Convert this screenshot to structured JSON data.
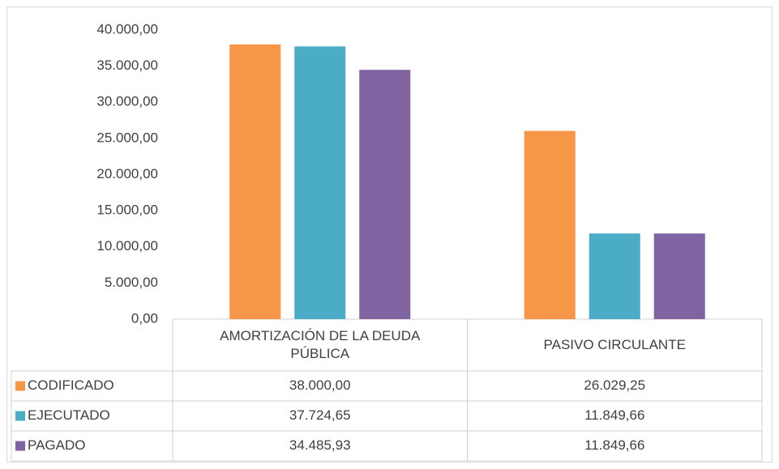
{
  "chart_data": {
    "type": "bar",
    "categories": [
      "AMORTIZACIÓN DE LA DEUDA PÚBLICA",
      "PASIVO CIRCULANTE"
    ],
    "series": [
      {
        "name": "CODIFICADO",
        "color": "#f79646",
        "values": [
          38000,
          26029.25
        ],
        "value_labels": [
          "38.000,00",
          "26.029,25"
        ]
      },
      {
        "name": "EJECUTADO",
        "color": "#4bacc6",
        "values": [
          37724.65,
          11849.66
        ],
        "value_labels": [
          "37.724,65",
          "11.849,66"
        ]
      },
      {
        "name": "PAGADO",
        "color": "#8064a2",
        "values": [
          34485.93,
          11849.66
        ],
        "value_labels": [
          "34.485,93",
          "11.849,66"
        ]
      }
    ],
    "ylim": [
      0,
      40000
    ],
    "yticks": [
      {
        "value": 0,
        "label": "0,00"
      },
      {
        "value": 5000,
        "label": "5.000,00"
      },
      {
        "value": 10000,
        "label": "10.000,00"
      },
      {
        "value": 15000,
        "label": "15.000,00"
      },
      {
        "value": 20000,
        "label": "20.000,00"
      },
      {
        "value": 25000,
        "label": "25.000,00"
      },
      {
        "value": 30000,
        "label": "30.000,00"
      },
      {
        "value": 35000,
        "label": "35.000,00"
      },
      {
        "value": 40000,
        "label": "40.000,00"
      }
    ],
    "grid": false
  }
}
